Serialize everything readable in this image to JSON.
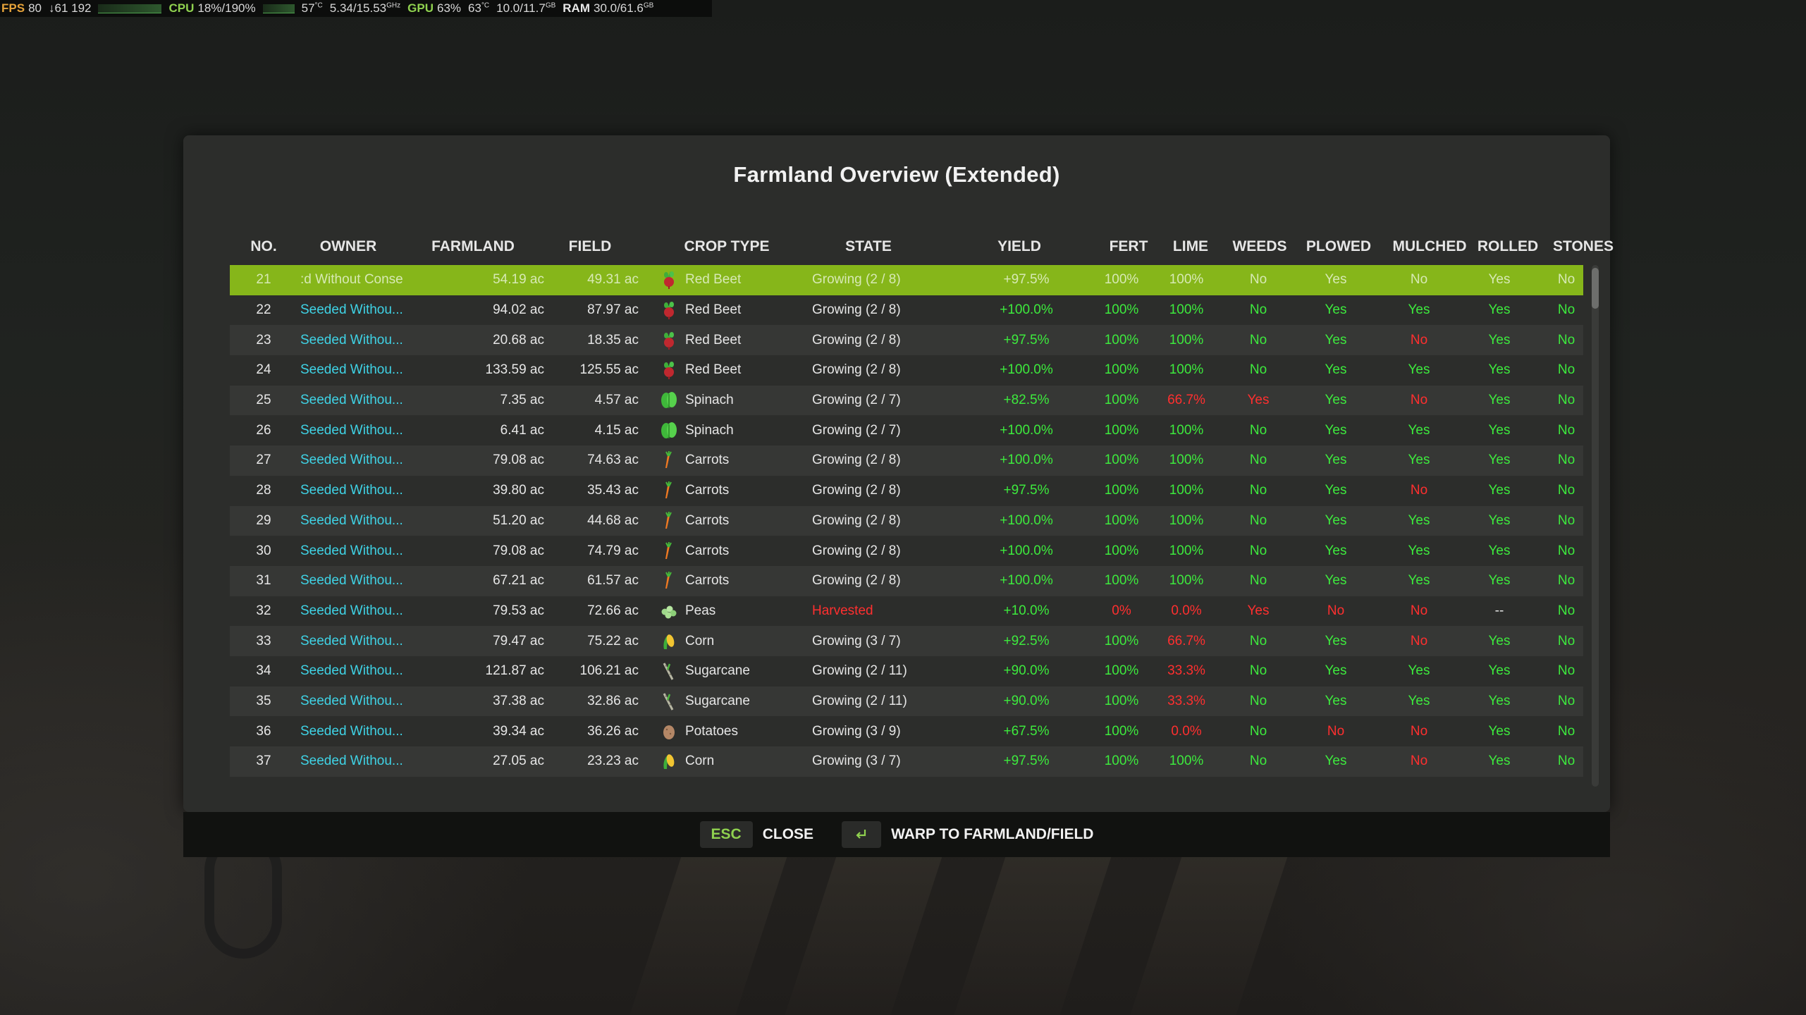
{
  "hud": {
    "fps_label": "FPS",
    "fps_value": "80",
    "frametime": "↓61 192",
    "cpu_label": "CPU",
    "cpu_value": "18%/190%",
    "cpu_temp": "57",
    "cpu_clock": "5.34/15.53",
    "clock_unit": "GHz",
    "gpu_label": "GPU",
    "gpu_value": "63%",
    "gpu_temp": "63",
    "temp_unit": "°C",
    "vram": "10.0/11.7",
    "mem_unit": "GB",
    "ram_label": "RAM",
    "ram_value": "30.0/61.6"
  },
  "dialog": {
    "title": "Farmland Overview (Extended)",
    "columns": [
      "NO.",
      "OWNER",
      "FARMLAND",
      "FIELD",
      "CROP TYPE",
      "STATE",
      "YIELD",
      "FERT",
      "LIME",
      "WEEDS",
      "PLOWED",
      "MULCHED",
      "ROLLED",
      "STONES"
    ]
  },
  "colors": {
    "selected_row": "#86b61a",
    "good": "#3dea3d",
    "bad": "#ff2f2f",
    "owner": "#3fd3e6"
  },
  "rows": [
    {
      "no": "21",
      "owner": ":d Without Conse",
      "farmland": "54.19 ac",
      "field": "49.31 ac",
      "crop_icon": "red-beet-icon",
      "crop": "Red Beet",
      "state": "Growing (2 / 8)",
      "state_status": "ok",
      "yield": "+97.5%",
      "fert": "100%",
      "fert_status": "good",
      "lime": "100%",
      "lime_status": "good",
      "weeds": "No",
      "weeds_status": "good",
      "plowed": "Yes",
      "plowed_status": "good",
      "mulched": "No",
      "mulched_status": "bad",
      "rolled": "Yes",
      "rolled_status": "good",
      "stones": "No",
      "stones_status": "good",
      "selected": true
    },
    {
      "no": "22",
      "owner": "Seeded Withou...",
      "farmland": "94.02 ac",
      "field": "87.97 ac",
      "crop_icon": "red-beet-icon",
      "crop": "Red Beet",
      "state": "Growing (2 / 8)",
      "state_status": "ok",
      "yield": "+100.0%",
      "fert": "100%",
      "fert_status": "good",
      "lime": "100%",
      "lime_status": "good",
      "weeds": "No",
      "weeds_status": "good",
      "plowed": "Yes",
      "plowed_status": "good",
      "mulched": "Yes",
      "mulched_status": "good",
      "rolled": "Yes",
      "rolled_status": "good",
      "stones": "No",
      "stones_status": "good",
      "selected": false
    },
    {
      "no": "23",
      "owner": "Seeded Withou...",
      "farmland": "20.68 ac",
      "field": "18.35 ac",
      "crop_icon": "red-beet-icon",
      "crop": "Red Beet",
      "state": "Growing (2 / 8)",
      "state_status": "ok",
      "yield": "+97.5%",
      "fert": "100%",
      "fert_status": "good",
      "lime": "100%",
      "lime_status": "good",
      "weeds": "No",
      "weeds_status": "good",
      "plowed": "Yes",
      "plowed_status": "good",
      "mulched": "No",
      "mulched_status": "bad",
      "rolled": "Yes",
      "rolled_status": "good",
      "stones": "No",
      "stones_status": "good",
      "selected": false
    },
    {
      "no": "24",
      "owner": "Seeded Withou...",
      "farmland": "133.59 ac",
      "field": "125.55 ac",
      "crop_icon": "red-beet-icon",
      "crop": "Red Beet",
      "state": "Growing (2 / 8)",
      "state_status": "ok",
      "yield": "+100.0%",
      "fert": "100%",
      "fert_status": "good",
      "lime": "100%",
      "lime_status": "good",
      "weeds": "No",
      "weeds_status": "good",
      "plowed": "Yes",
      "plowed_status": "good",
      "mulched": "Yes",
      "mulched_status": "good",
      "rolled": "Yes",
      "rolled_status": "good",
      "stones": "No",
      "stones_status": "good",
      "selected": false
    },
    {
      "no": "25",
      "owner": "Seeded Withou...",
      "farmland": "7.35 ac",
      "field": "4.57 ac",
      "crop_icon": "spinach-icon",
      "crop": "Spinach",
      "state": "Growing (2 / 7)",
      "state_status": "ok",
      "yield": "+82.5%",
      "fert": "100%",
      "fert_status": "good",
      "lime": "66.7%",
      "lime_status": "bad",
      "weeds": "Yes",
      "weeds_status": "bad",
      "plowed": "Yes",
      "plowed_status": "good",
      "mulched": "No",
      "mulched_status": "bad",
      "rolled": "Yes",
      "rolled_status": "good",
      "stones": "No",
      "stones_status": "good",
      "selected": false
    },
    {
      "no": "26",
      "owner": "Seeded Withou...",
      "farmland": "6.41 ac",
      "field": "4.15 ac",
      "crop_icon": "spinach-icon",
      "crop": "Spinach",
      "state": "Growing (2 / 7)",
      "state_status": "ok",
      "yield": "+100.0%",
      "fert": "100%",
      "fert_status": "good",
      "lime": "100%",
      "lime_status": "good",
      "weeds": "No",
      "weeds_status": "good",
      "plowed": "Yes",
      "plowed_status": "good",
      "mulched": "Yes",
      "mulched_status": "good",
      "rolled": "Yes",
      "rolled_status": "good",
      "stones": "No",
      "stones_status": "good",
      "selected": false
    },
    {
      "no": "27",
      "owner": "Seeded Withou...",
      "farmland": "79.08 ac",
      "field": "74.63 ac",
      "crop_icon": "carrot-icon",
      "crop": "Carrots",
      "state": "Growing (2 / 8)",
      "state_status": "ok",
      "yield": "+100.0%",
      "fert": "100%",
      "fert_status": "good",
      "lime": "100%",
      "lime_status": "good",
      "weeds": "No",
      "weeds_status": "good",
      "plowed": "Yes",
      "plowed_status": "good",
      "mulched": "Yes",
      "mulched_status": "good",
      "rolled": "Yes",
      "rolled_status": "good",
      "stones": "No",
      "stones_status": "good",
      "selected": false
    },
    {
      "no": "28",
      "owner": "Seeded Withou...",
      "farmland": "39.80 ac",
      "field": "35.43 ac",
      "crop_icon": "carrot-icon",
      "crop": "Carrots",
      "state": "Growing (2 / 8)",
      "state_status": "ok",
      "yield": "+97.5%",
      "fert": "100%",
      "fert_status": "good",
      "lime": "100%",
      "lime_status": "good",
      "weeds": "No",
      "weeds_status": "good",
      "plowed": "Yes",
      "plowed_status": "good",
      "mulched": "No",
      "mulched_status": "bad",
      "rolled": "Yes",
      "rolled_status": "good",
      "stones": "No",
      "stones_status": "good",
      "selected": false
    },
    {
      "no": "29",
      "owner": "Seeded Withou...",
      "farmland": "51.20 ac",
      "field": "44.68 ac",
      "crop_icon": "carrot-icon",
      "crop": "Carrots",
      "state": "Growing (2 / 8)",
      "state_status": "ok",
      "yield": "+100.0%",
      "fert": "100%",
      "fert_status": "good",
      "lime": "100%",
      "lime_status": "good",
      "weeds": "No",
      "weeds_status": "good",
      "plowed": "Yes",
      "plowed_status": "good",
      "mulched": "Yes",
      "mulched_status": "good",
      "rolled": "Yes",
      "rolled_status": "good",
      "stones": "No",
      "stones_status": "good",
      "selected": false
    },
    {
      "no": "30",
      "owner": "Seeded Withou...",
      "farmland": "79.08 ac",
      "field": "74.79 ac",
      "crop_icon": "carrot-icon",
      "crop": "Carrots",
      "state": "Growing (2 / 8)",
      "state_status": "ok",
      "yield": "+100.0%",
      "fert": "100%",
      "fert_status": "good",
      "lime": "100%",
      "lime_status": "good",
      "weeds": "No",
      "weeds_status": "good",
      "plowed": "Yes",
      "plowed_status": "good",
      "mulched": "Yes",
      "mulched_status": "good",
      "rolled": "Yes",
      "rolled_status": "good",
      "stones": "No",
      "stones_status": "good",
      "selected": false
    },
    {
      "no": "31",
      "owner": "Seeded Withou...",
      "farmland": "67.21 ac",
      "field": "61.57 ac",
      "crop_icon": "carrot-icon",
      "crop": "Carrots",
      "state": "Growing (2 / 8)",
      "state_status": "ok",
      "yield": "+100.0%",
      "fert": "100%",
      "fert_status": "good",
      "lime": "100%",
      "lime_status": "good",
      "weeds": "No",
      "weeds_status": "good",
      "plowed": "Yes",
      "plowed_status": "good",
      "mulched": "Yes",
      "mulched_status": "good",
      "rolled": "Yes",
      "rolled_status": "good",
      "stones": "No",
      "stones_status": "good",
      "selected": false
    },
    {
      "no": "32",
      "owner": "Seeded Withou...",
      "farmland": "79.53 ac",
      "field": "72.66 ac",
      "crop_icon": "peas-icon",
      "crop": "Peas",
      "state": "Harvested",
      "state_status": "bad",
      "yield": "+10.0%",
      "fert": "0%",
      "fert_status": "bad",
      "lime": "0.0%",
      "lime_status": "bad",
      "weeds": "Yes",
      "weeds_status": "bad",
      "plowed": "No",
      "plowed_status": "bad",
      "mulched": "No",
      "mulched_status": "bad",
      "rolled": "--",
      "rolled_status": "neutral",
      "stones": "No",
      "stones_status": "good",
      "selected": false
    },
    {
      "no": "33",
      "owner": "Seeded Withou...",
      "farmland": "79.47 ac",
      "field": "75.22 ac",
      "crop_icon": "corn-icon",
      "crop": "Corn",
      "state": "Growing (3 / 7)",
      "state_status": "ok",
      "yield": "+92.5%",
      "fert": "100%",
      "fert_status": "good",
      "lime": "66.7%",
      "lime_status": "bad",
      "weeds": "No",
      "weeds_status": "good",
      "plowed": "Yes",
      "plowed_status": "good",
      "mulched": "No",
      "mulched_status": "bad",
      "rolled": "Yes",
      "rolled_status": "good",
      "stones": "No",
      "stones_status": "good",
      "selected": false
    },
    {
      "no": "34",
      "owner": "Seeded Withou...",
      "farmland": "121.87 ac",
      "field": "106.21 ac",
      "crop_icon": "sugarcane-icon",
      "crop": "Sugarcane",
      "state": "Growing (2 / 11)",
      "state_status": "ok",
      "yield": "+90.0%",
      "fert": "100%",
      "fert_status": "good",
      "lime": "33.3%",
      "lime_status": "bad",
      "weeds": "No",
      "weeds_status": "good",
      "plowed": "Yes",
      "plowed_status": "good",
      "mulched": "Yes",
      "mulched_status": "good",
      "rolled": "Yes",
      "rolled_status": "good",
      "stones": "No",
      "stones_status": "good",
      "selected": false
    },
    {
      "no": "35",
      "owner": "Seeded Withou...",
      "farmland": "37.38 ac",
      "field": "32.86 ac",
      "crop_icon": "sugarcane-icon",
      "crop": "Sugarcane",
      "state": "Growing (2 / 11)",
      "state_status": "ok",
      "yield": "+90.0%",
      "fert": "100%",
      "fert_status": "good",
      "lime": "33.3%",
      "lime_status": "bad",
      "weeds": "No",
      "weeds_status": "good",
      "plowed": "Yes",
      "plowed_status": "good",
      "mulched": "Yes",
      "mulched_status": "good",
      "rolled": "Yes",
      "rolled_status": "good",
      "stones": "No",
      "stones_status": "good",
      "selected": false
    },
    {
      "no": "36",
      "owner": "Seeded Withou...",
      "farmland": "39.34 ac",
      "field": "36.26 ac",
      "crop_icon": "potato-icon",
      "crop": "Potatoes",
      "state": "Growing (3 / 9)",
      "state_status": "ok",
      "yield": "+67.5%",
      "fert": "100%",
      "fert_status": "good",
      "lime": "0.0%",
      "lime_status": "bad",
      "weeds": "No",
      "weeds_status": "good",
      "plowed": "No",
      "plowed_status": "bad",
      "mulched": "No",
      "mulched_status": "bad",
      "rolled": "Yes",
      "rolled_status": "good",
      "stones": "No",
      "stones_status": "good",
      "selected": false
    },
    {
      "no": "37",
      "owner": "Seeded Withou...",
      "farmland": "27.05 ac",
      "field": "23.23 ac",
      "crop_icon": "corn-icon",
      "crop": "Corn",
      "state": "Growing (3 / 7)",
      "state_status": "ok",
      "yield": "+97.5%",
      "fert": "100%",
      "fert_status": "good",
      "lime": "100%",
      "lime_status": "good",
      "weeds": "No",
      "weeds_status": "good",
      "plowed": "Yes",
      "plowed_status": "good",
      "mulched": "No",
      "mulched_status": "bad",
      "rolled": "Yes",
      "rolled_status": "good",
      "stones": "No",
      "stones_status": "good",
      "selected": false
    }
  ],
  "footer": {
    "esc_key": "ESC",
    "close_label": "CLOSE",
    "warp_label": "WARP TO FARMLAND/FIELD"
  }
}
